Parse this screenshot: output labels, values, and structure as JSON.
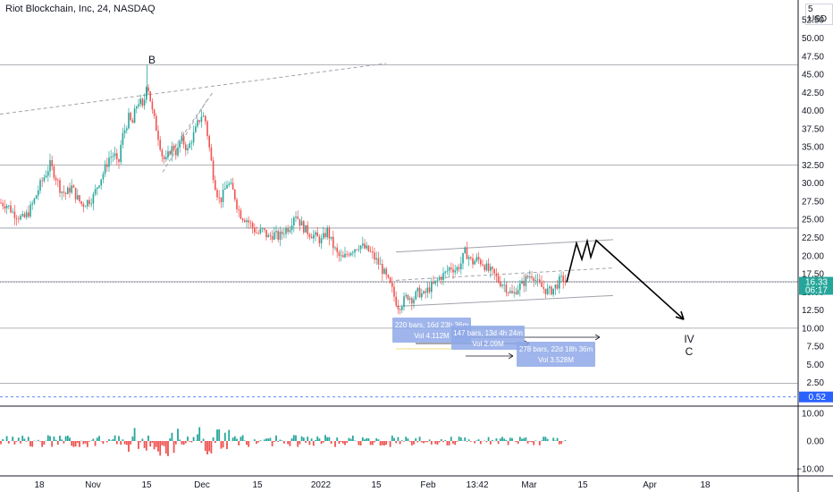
{
  "header": {
    "title": "Riot Blockchain, Inc, 24, NASDAQ",
    "currency": "USD",
    "currency_prefix": "5"
  },
  "colors": {
    "up": "#26a69a",
    "down": "#ef5350",
    "measure": "#8ea8e8",
    "grid": "#b2b5be"
  },
  "chart_data": {
    "type": "candlestick",
    "price_axis": {
      "ticks": [
        "52.50",
        "50.00",
        "47.50",
        "45.00",
        "42.50",
        "40.00",
        "37.50",
        "35.00",
        "32.50",
        "30.00",
        "27.50",
        "25.00",
        "22.50",
        "20.00",
        "17.50",
        "15.00",
        "12.50",
        "10.00",
        "7.50",
        "5.00",
        "2.50"
      ],
      "range": [
        -0.5,
        54.5
      ]
    },
    "time_axis": {
      "ticks": [
        "18",
        "Nov",
        "15",
        "Dec",
        "15",
        "2022",
        "15",
        "Feb",
        "13:42",
        "Mar",
        "15",
        "Apr",
        "18"
      ]
    },
    "current_price": {
      "value": "16.33",
      "countdown": "06:17"
    },
    "lower_price_label": "0.52",
    "horizontal_levels": [
      46.3,
      32.5,
      23.8,
      16.4,
      10.0,
      2.4
    ],
    "close_path": [
      [
        0,
        27.3
      ],
      [
        8,
        27.0
      ],
      [
        14,
        26.0
      ],
      [
        20,
        25.5
      ],
      [
        26,
        25.0
      ],
      [
        32,
        26.0
      ],
      [
        38,
        27.5
      ],
      [
        44,
        29.5
      ],
      [
        50,
        31.0
      ],
      [
        56,
        32.5
      ],
      [
        62,
        31.0
      ],
      [
        68,
        29.0
      ],
      [
        74,
        28.5
      ],
      [
        80,
        29.5
      ],
      [
        86,
        28.0
      ],
      [
        92,
        27.0
      ],
      [
        98,
        27.5
      ],
      [
        104,
        28.0
      ],
      [
        110,
        30.0
      ],
      [
        116,
        31.5
      ],
      [
        122,
        33.5
      ],
      [
        128,
        34.0
      ],
      [
        132,
        32.0
      ],
      [
        136,
        36.0
      ],
      [
        140,
        37.5
      ],
      [
        144,
        39.0
      ],
      [
        148,
        38.0
      ],
      [
        152,
        40.5
      ],
      [
        156,
        41.5
      ],
      [
        160,
        40.0
      ],
      [
        164,
        44.0
      ],
      [
        167,
        42.5
      ],
      [
        170,
        40.0
      ],
      [
        174,
        38.0
      ],
      [
        178,
        36.0
      ],
      [
        182,
        33.5
      ],
      [
        186,
        33.0
      ],
      [
        190,
        34.5
      ],
      [
        194,
        35.0
      ],
      [
        198,
        34.0
      ],
      [
        202,
        36.0
      ],
      [
        206,
        35.5
      ],
      [
        210,
        34.5
      ],
      [
        214,
        36.0
      ],
      [
        218,
        37.0
      ],
      [
        222,
        38.5
      ],
      [
        226,
        39.5
      ],
      [
        230,
        38.5
      ],
      [
        234,
        35.0
      ],
      [
        238,
        31.5
      ],
      [
        242,
        29.0
      ],
      [
        246,
        27.5
      ],
      [
        250,
        28.5
      ],
      [
        254,
        30.0
      ],
      [
        258,
        29.5
      ],
      [
        262,
        28.5
      ],
      [
        266,
        26.5
      ],
      [
        270,
        25.5
      ],
      [
        276,
        25.0
      ],
      [
        282,
        24.0
      ],
      [
        288,
        23.0
      ],
      [
        294,
        23.5
      ],
      [
        300,
        22.5
      ],
      [
        306,
        23.0
      ],
      [
        312,
        22.5
      ],
      [
        318,
        23.5
      ],
      [
        324,
        24.0
      ],
      [
        330,
        26.0
      ],
      [
        336,
        24.5
      ],
      [
        342,
        23.5
      ],
      [
        348,
        23.0
      ],
      [
        354,
        22.5
      ],
      [
        360,
        22.0
      ],
      [
        366,
        23.5
      ],
      [
        372,
        21.5
      ],
      [
        378,
        20.0
      ],
      [
        384,
        19.5
      ],
      [
        390,
        20.5
      ],
      [
        396,
        21.0
      ],
      [
        402,
        21.5
      ],
      [
        408,
        21.0
      ],
      [
        414,
        20.5
      ],
      [
        420,
        19.5
      ],
      [
        426,
        18.5
      ],
      [
        432,
        17.0
      ],
      [
        438,
        15.5
      ],
      [
        442,
        14.0
      ],
      [
        446,
        13.0
      ],
      [
        450,
        13.5
      ],
      [
        456,
        14.5
      ],
      [
        462,
        14.0
      ],
      [
        468,
        15.0
      ],
      [
        474,
        14.5
      ],
      [
        480,
        15.5
      ],
      [
        486,
        16.0
      ],
      [
        492,
        17.0
      ],
      [
        498,
        17.5
      ],
      [
        504,
        18.5
      ],
      [
        510,
        18.0
      ],
      [
        516,
        19.0
      ],
      [
        520,
        20.5
      ],
      [
        524,
        20.0
      ],
      [
        528,
        19.0
      ],
      [
        534,
        19.5
      ],
      [
        540,
        19.0
      ],
      [
        546,
        18.0
      ],
      [
        552,
        17.5
      ],
      [
        558,
        16.5
      ],
      [
        564,
        16.0
      ],
      [
        570,
        15.0
      ],
      [
        574,
        14.5
      ],
      [
        578,
        15.5
      ],
      [
        584,
        16.0
      ],
      [
        590,
        17.0
      ],
      [
        596,
        17.5
      ],
      [
        602,
        16.0
      ],
      [
        608,
        15.5
      ],
      [
        614,
        15.0
      ],
      [
        620,
        15.5
      ],
      [
        626,
        16.5
      ],
      [
        630,
        16.8
      ],
      [
        634,
        16.33
      ]
    ],
    "projection": [
      [
        634,
        16.33
      ],
      [
        645,
        21.7
      ],
      [
        651,
        19.5
      ],
      [
        657,
        22.0
      ],
      [
        661,
        19.8
      ],
      [
        667,
        22.1
      ],
      [
        765,
        11.2
      ]
    ],
    "projection_x_labels": {
      "note": ""
    },
    "channel_lines": [
      {
        "from": [
          443,
          20.5
        ],
        "to": [
          686,
          22.2
        ],
        "dashed": false
      },
      {
        "from": [
          443,
          13.0
        ],
        "to": [
          686,
          14.5
        ],
        "dashed": false
      },
      {
        "from": [
          443,
          16.6
        ],
        "to": [
          686,
          18.3
        ],
        "dashed": true
      },
      {
        "from": [
          0,
          39.5
        ],
        "to": [
          432,
          46.5
        ],
        "dashed": true
      },
      {
        "from": [
          182,
          31.5
        ],
        "to": [
          232,
          41.5
        ],
        "dashed": true
      },
      {
        "from": [
          187,
          33.5
        ],
        "to": [
          238,
          42.5
        ],
        "dashed": true
      }
    ],
    "measures": [
      {
        "text1": "220 bars, 16d 23h 36m",
        "text2": "Vol 4.112M"
      },
      {
        "text1": "147 bars, 13d 4h 24m",
        "text2": "Vol 2.09M"
      },
      {
        "text1": "278 bars, 22d 18h 36m",
        "text2": "Vol 3.528M"
      }
    ],
    "wave_labels": {
      "b": "B",
      "iv": "IV",
      "c": "C"
    },
    "oscillator": {
      "ticks": [
        "10.00",
        "0.00",
        "−10.00"
      ]
    }
  }
}
